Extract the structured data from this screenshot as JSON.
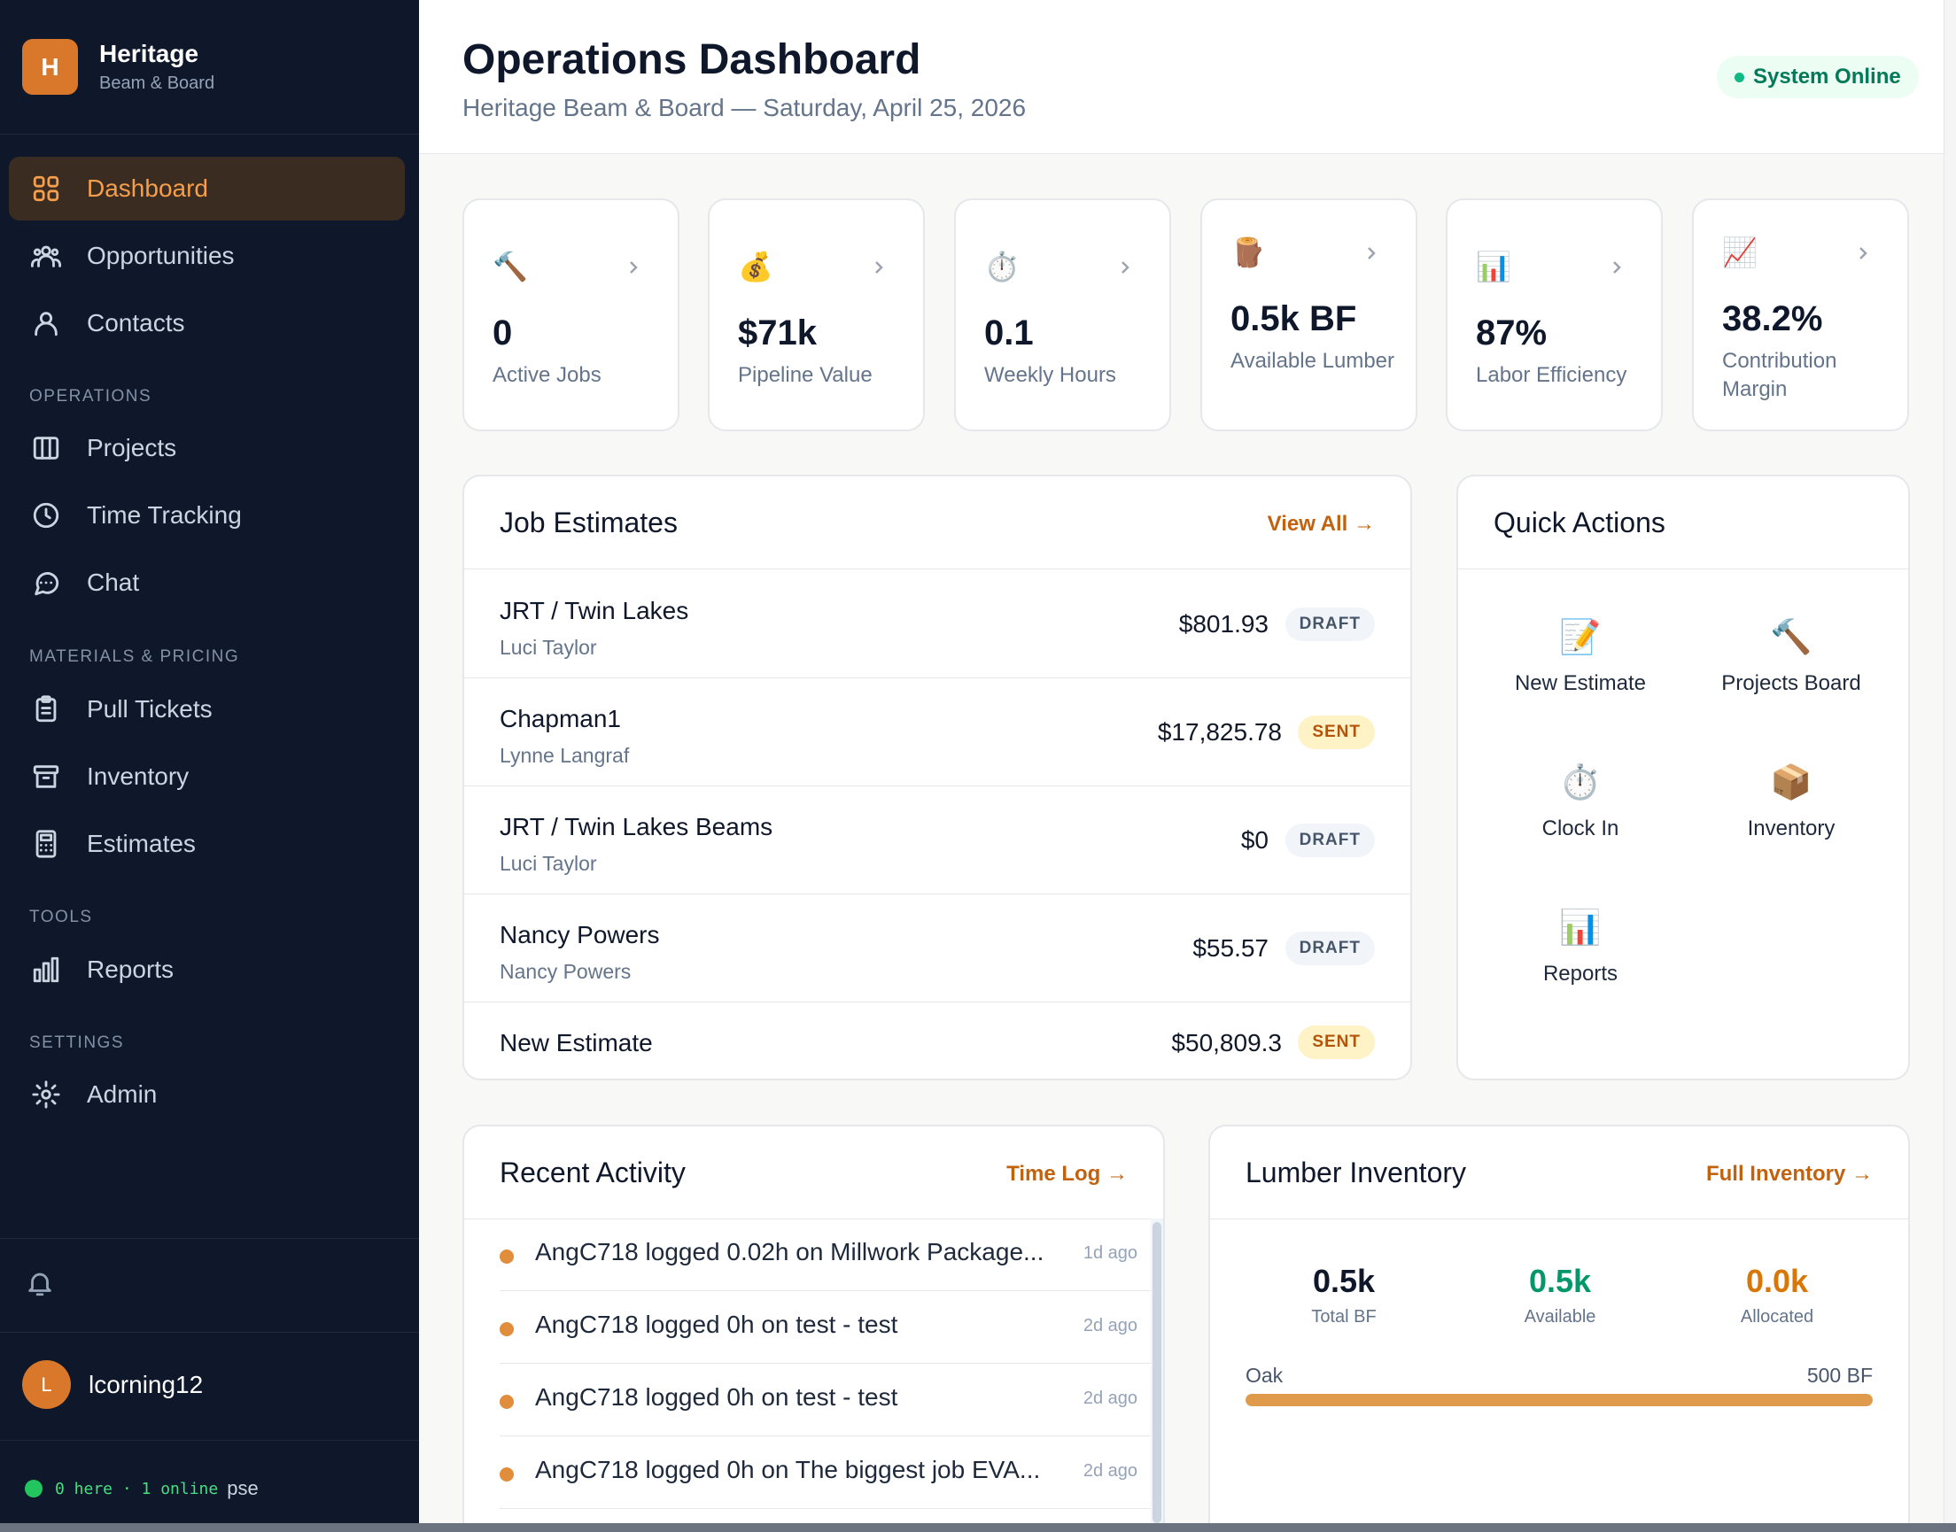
{
  "brand": {
    "initial": "H",
    "name": "Heritage",
    "subtitle": "Beam & Board",
    "color": "#d9772b"
  },
  "nav": {
    "main": [
      {
        "label": "Dashboard",
        "icon": "grid-icon",
        "active": true
      },
      {
        "label": "Opportunities",
        "icon": "users-group-icon"
      },
      {
        "label": "Contacts",
        "icon": "user-icon"
      }
    ],
    "operations_title": "OPERATIONS",
    "operations": [
      {
        "label": "Projects",
        "icon": "columns-icon"
      },
      {
        "label": "Time Tracking",
        "icon": "clock-icon"
      },
      {
        "label": "Chat",
        "icon": "chat-icon"
      }
    ],
    "materials_title": "MATERIALS & PRICING",
    "materials": [
      {
        "label": "Pull Tickets",
        "icon": "clipboard-icon"
      },
      {
        "label": "Inventory",
        "icon": "archive-icon"
      },
      {
        "label": "Estimates",
        "icon": "calculator-icon"
      }
    ],
    "tools_title": "TOOLS",
    "tools": [
      {
        "label": "Reports",
        "icon": "bar-chart-icon"
      }
    ],
    "settings_title": "SETTINGS",
    "settings": [
      {
        "label": "Admin",
        "icon": "gear-icon"
      }
    ]
  },
  "user": {
    "initial": "L",
    "name": "lcorning12"
  },
  "presence": {
    "text": "0 here · 1 online",
    "extra": "pse"
  },
  "header": {
    "title": "Operations Dashboard",
    "subtitle": "Heritage Beam & Board — Saturday, April 25, 2026",
    "status": "System Online"
  },
  "stats": [
    {
      "emoji": "🔨",
      "value": "0",
      "label": "Active Jobs"
    },
    {
      "emoji": "💰",
      "value": "$71k",
      "label": "Pipeline Value"
    },
    {
      "emoji": "⏱️",
      "value": "0.1",
      "label": "Weekly Hours"
    },
    {
      "emoji": "🪵",
      "value": "0.5k BF",
      "label": "Available Lumber"
    },
    {
      "emoji": "📊",
      "value": "87%",
      "label": "Labor Efficiency"
    },
    {
      "emoji": "📈",
      "value": "38.2%",
      "label": "Contribution Margin"
    }
  ],
  "estimates": {
    "title": "Job Estimates",
    "link": "View All →",
    "rows": [
      {
        "name": "JRT / Twin Lakes",
        "client": "Luci Taylor",
        "amount": "$801.93",
        "status": "DRAFT"
      },
      {
        "name": "Chapman1",
        "client": "Lynne Langraf",
        "amount": "$17,825.78",
        "status": "SENT"
      },
      {
        "name": "JRT / Twin Lakes Beams",
        "client": "Luci Taylor",
        "amount": "$0",
        "status": "DRAFT"
      },
      {
        "name": "Nancy Powers",
        "client": "Nancy Powers",
        "amount": "$55.57",
        "status": "DRAFT"
      },
      {
        "name": "New Estimate",
        "client": "",
        "amount": "$50,809.3",
        "status": "SENT"
      }
    ]
  },
  "quick_actions": {
    "title": "Quick Actions",
    "items": [
      {
        "emoji": "📝",
        "label": "New Estimate"
      },
      {
        "emoji": "🔨",
        "label": "Projects Board"
      },
      {
        "emoji": "⏱️",
        "label": "Clock In"
      },
      {
        "emoji": "📦",
        "label": "Inventory"
      },
      {
        "emoji": "📊",
        "label": "Reports"
      }
    ]
  },
  "activity": {
    "title": "Recent Activity",
    "link": "Time Log →",
    "items": [
      {
        "text": "AngC718 logged 0.02h on Millwork Package...",
        "time": "1d ago"
      },
      {
        "text": "AngC718 logged 0h on test - test",
        "time": "2d ago"
      },
      {
        "text": "AngC718 logged 0h on test - test",
        "time": "2d ago"
      },
      {
        "text": "AngC718 logged 0h on The biggest job EVA...",
        "time": "2d ago"
      }
    ]
  },
  "lumber": {
    "title": "Lumber Inventory",
    "link": "Full Inventory →",
    "stats": [
      {
        "value": "0.5k",
        "label": "Total BF",
        "color": "#0f172a"
      },
      {
        "value": "0.5k",
        "label": "Available",
        "color": "#059669"
      },
      {
        "value": "0.0k",
        "label": "Allocated",
        "color": "#d97706"
      }
    ],
    "rows": [
      {
        "species": "Oak",
        "amount": "500 BF",
        "fill_fraction": 1.0
      }
    ]
  }
}
